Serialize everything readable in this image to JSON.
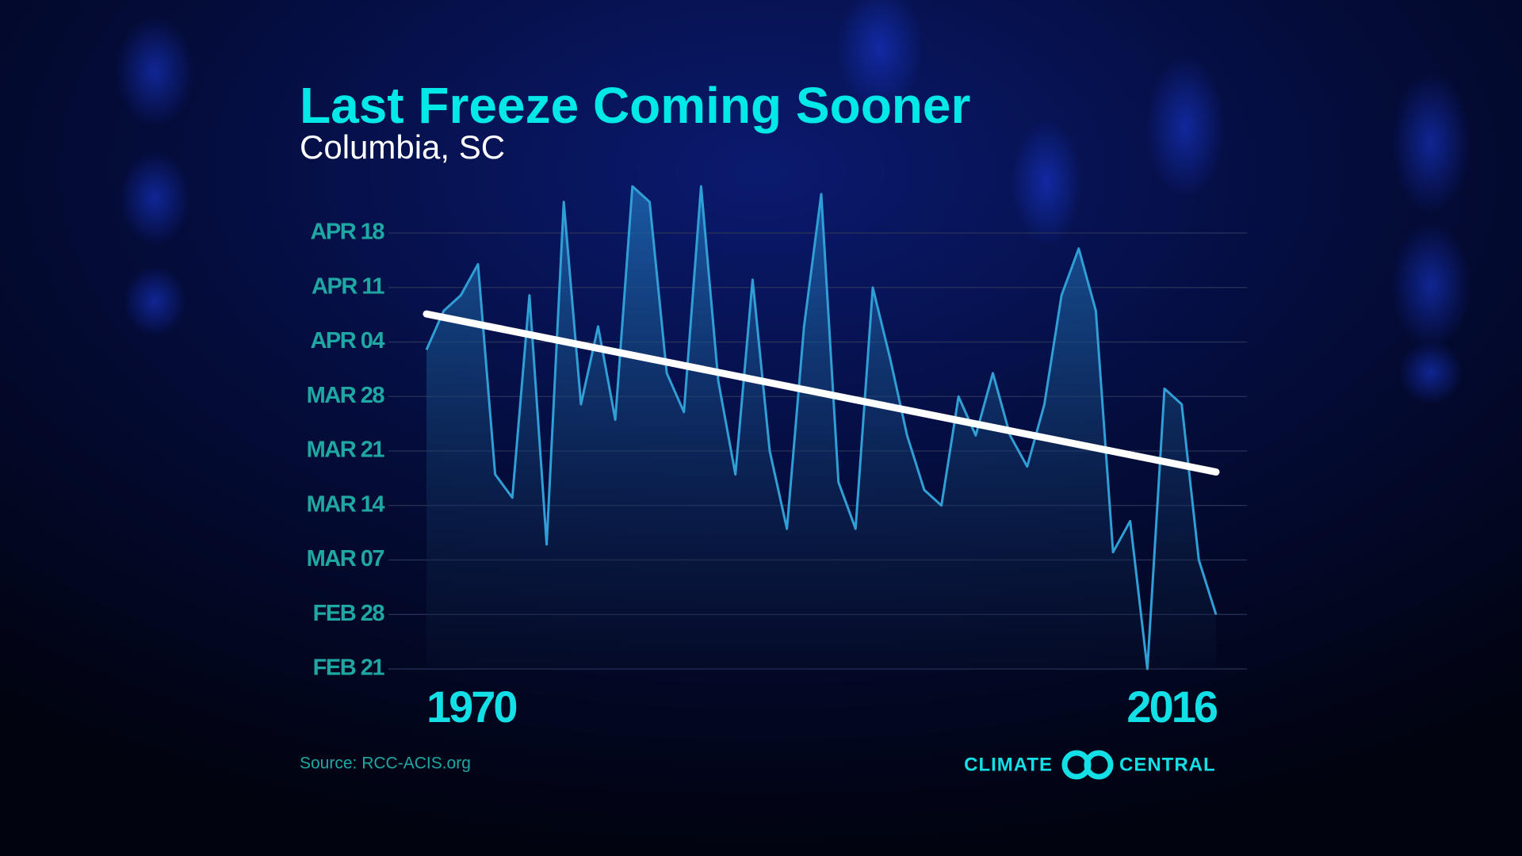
{
  "chart_data": {
    "type": "line",
    "title": "Last Freeze Coming Sooner",
    "subtitle": "Columbia, SC",
    "source": "Source: RCC-ACIS.org",
    "x": [
      1970,
      1971,
      1972,
      1973,
      1974,
      1975,
      1976,
      1977,
      1978,
      1979,
      1980,
      1981,
      1982,
      1983,
      1984,
      1985,
      1986,
      1987,
      1988,
      1989,
      1990,
      1991,
      1992,
      1993,
      1994,
      1995,
      1996,
      1997,
      1998,
      1999,
      2000,
      2001,
      2002,
      2003,
      2004,
      2005,
      2006,
      2007,
      2008,
      2009,
      2010,
      2011,
      2012,
      2013,
      2014,
      2015,
      2016
    ],
    "series": [
      {
        "color": "#2f9fd6",
        "values": [
          93,
          98,
          100,
          104,
          77,
          74,
          100,
          68,
          112,
          86,
          96,
          84,
          114,
          112,
          90,
          85,
          114,
          89,
          77,
          102,
          80,
          70,
          96,
          113,
          76,
          70,
          101,
          92,
          82,
          75,
          73,
          87,
          82,
          90,
          82,
          78,
          86,
          100,
          106,
          98,
          67,
          71,
          52,
          88,
          86,
          66,
          59
        ]
      }
    ],
    "trend": {
      "color": "#ffffff",
      "x": [
        1970,
        2016
      ],
      "values": [
        97.6,
        77.3
      ]
    },
    "xlim": [
      1970,
      2016
    ],
    "xticks": [
      1970,
      2016
    ],
    "ylim": [
      52,
      108
    ],
    "yticks": [
      {
        "value": 52,
        "label": "FEB 21"
      },
      {
        "value": 59,
        "label": "FEB 28"
      },
      {
        "value": 66,
        "label": "MAR 07"
      },
      {
        "value": 73,
        "label": "MAR 14"
      },
      {
        "value": 80,
        "label": "MAR 21"
      },
      {
        "value": 87,
        "label": "MAR 28"
      },
      {
        "value": 94,
        "label": "APR 04"
      },
      {
        "value": 101,
        "label": "APR 11"
      },
      {
        "value": 108,
        "label": "APR 18"
      }
    ],
    "grid": true
  },
  "brand": {
    "left": "CLIMATE",
    "right": "CENTRAL"
  }
}
